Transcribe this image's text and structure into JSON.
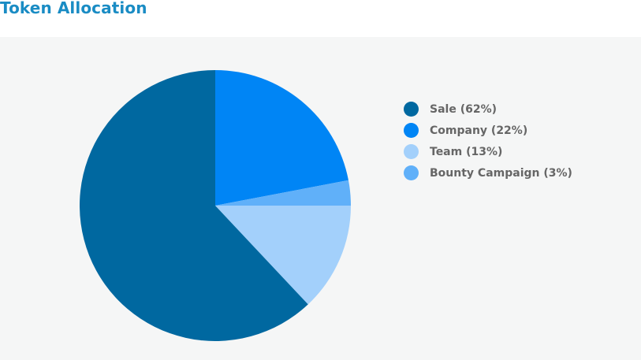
{
  "header": {
    "title": "Token Allocation"
  },
  "colors": {
    "title": "#1a8cc4",
    "panel_background": "#f5f6f6",
    "legend_text": "#666666"
  },
  "chart_data": {
    "type": "pie",
    "title": "Token Allocation",
    "legend_position": "right",
    "slices": [
      {
        "label": "Sale",
        "value": 62,
        "legend": "Sale (62%)",
        "color": "#0068a0"
      },
      {
        "label": "Company",
        "value": 22,
        "legend": "Company (22%)",
        "color": "#0085f5"
      },
      {
        "label": "Team",
        "value": 13,
        "legend": "Team (13%)",
        "color": "#a3d0fb"
      },
      {
        "label": "Bounty Campaign",
        "value": 3,
        "legend": "Bounty Campaign (3%)",
        "color": "#60b0f9"
      }
    ],
    "draw_order": [
      "Company",
      "Bounty Campaign",
      "Team",
      "Sale"
    ]
  }
}
